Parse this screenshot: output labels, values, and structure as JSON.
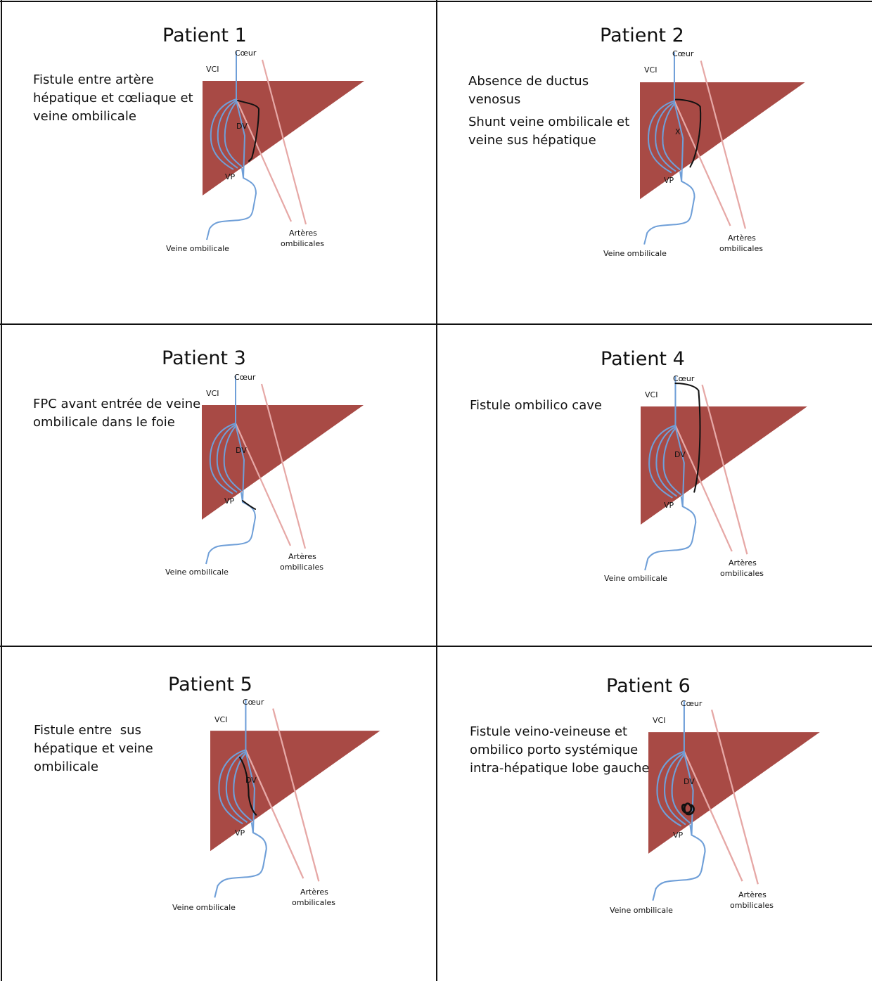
{
  "colors": {
    "liver": "#a84a45",
    "vein": "#6f9fd8",
    "artery": "#e6a8a6",
    "fistula": "#111111",
    "grid": "#111111"
  },
  "labels": {
    "heart": "Cœur",
    "vci": "VCI",
    "dv": "DV",
    "vp": "VP",
    "umbilical_vein": "Veine ombilicale",
    "arteries_1": "Artères",
    "arteries_2": "ombilicales"
  },
  "panels": [
    {
      "title": "Patient 1",
      "description": [
        "Fistule entre artère hépatique et cœliaque et veine ombilicale"
      ],
      "show_dv": true,
      "x_mark": ""
    },
    {
      "title": "Patient 2",
      "description": [
        "Absence de ductus venosus",
        "Shunt veine ombilicale et veine sus hépatique"
      ],
      "show_dv": false,
      "x_mark": "X"
    },
    {
      "title": "Patient 3",
      "description": [
        "FPC avant entrée de veine ombilicale dans le foie"
      ],
      "show_dv": true,
      "x_mark": ""
    },
    {
      "title": "Patient 4",
      "description": [
        "Fistule ombilico cave"
      ],
      "show_dv": true,
      "x_mark": ""
    },
    {
      "title": "Patient 5",
      "description": [
        "Fistule entre  sus hépatique et veine ombilicale"
      ],
      "show_dv": true,
      "x_mark": ""
    },
    {
      "title": "Patient 6",
      "description": [
        "Fistule veino-veineuse et ombilico porto systémique intra-hépatique lobe gauche"
      ],
      "show_dv": true,
      "x_mark": ""
    }
  ]
}
